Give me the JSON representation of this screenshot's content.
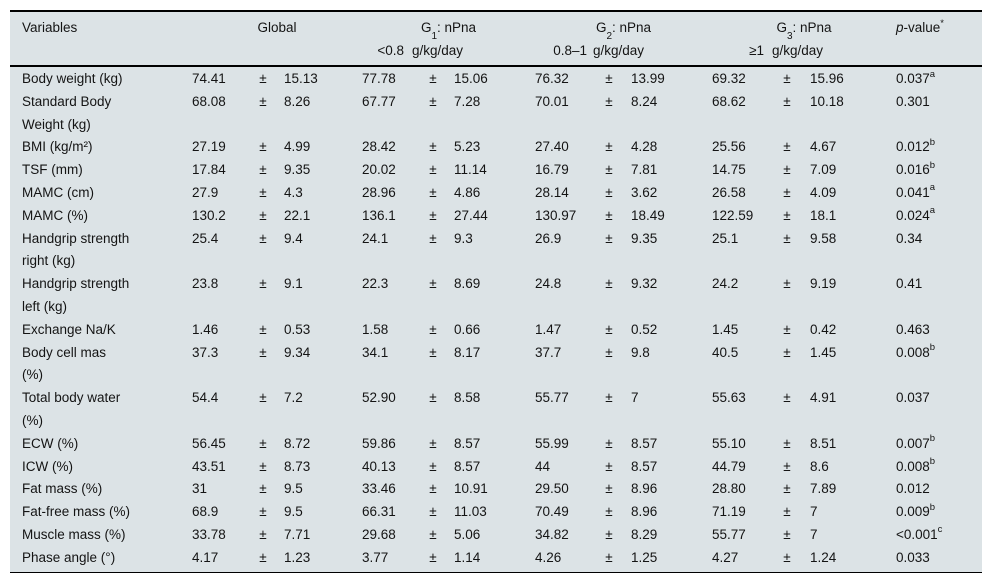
{
  "table": {
    "pm": "±",
    "header": {
      "variables": "Variables",
      "global": {
        "name": "Global"
      },
      "g1": {
        "prefix": "G",
        "sub": "1",
        "suffix": ": nPna",
        "range": "<0.8",
        "unit": "g/kg/day"
      },
      "g2": {
        "prefix": "G",
        "sub": "2",
        "suffix": ": nPna",
        "range": "0.8–1",
        "unit": "g/kg/day"
      },
      "g3": {
        "prefix": "G",
        "sub": "3",
        "suffix": ": nPna",
        "range": "≥1",
        "unit": "g/kg/day"
      },
      "pvalue": {
        "italic": "p",
        "rest": "-value",
        "sup": "*"
      }
    },
    "rows": [
      {
        "var1": "Body weight (kg)",
        "var2": "",
        "global_mean": "74.41",
        "global_sd": "15.13",
        "g1_mean": "77.78",
        "g1_sd": "15.06",
        "g2_mean": "76.32",
        "g2_sd": "13.99",
        "g3_mean": "69.32",
        "g3_sd": "15.96",
        "p": "0.037",
        "p_sup": "a"
      },
      {
        "var1": "Standard Body",
        "var2": "Weight (kg)",
        "global_mean": "68.08",
        "global_sd": "8.26",
        "g1_mean": "67.77",
        "g1_sd": "7.28",
        "g2_mean": "70.01",
        "g2_sd": "8.24",
        "g3_mean": "68.62",
        "g3_sd": "10.18",
        "p": "0.301",
        "p_sup": ""
      },
      {
        "var1": "BMI (kg/m²)",
        "var2": "",
        "global_mean": "27.19",
        "global_sd": "4.99",
        "g1_mean": "28.42",
        "g1_sd": "5.23",
        "g2_mean": "27.40",
        "g2_sd": "4.28",
        "g3_mean": "25.56",
        "g3_sd": "4.67",
        "p": "0.012",
        "p_sup": "b"
      },
      {
        "var1": "TSF (mm)",
        "var2": "",
        "global_mean": "17.84",
        "global_sd": "9.35",
        "g1_mean": "20.02",
        "g1_sd": "11.14",
        "g2_mean": "16.79",
        "g2_sd": "7.81",
        "g3_mean": "14.75",
        "g3_sd": "7.09",
        "p": "0.016",
        "p_sup": "b"
      },
      {
        "var1": "MAMC (cm)",
        "var2": "",
        "global_mean": "27.9",
        "global_sd": "4.3",
        "g1_mean": "28.96",
        "g1_sd": "4.86",
        "g2_mean": "28.14",
        "g2_sd": "3.62",
        "g3_mean": "26.58",
        "g3_sd": "4.09",
        "p": "0.041",
        "p_sup": "a"
      },
      {
        "var1": "MAMC (%)",
        "var2": "",
        "global_mean": "130.2",
        "global_sd": "22.1",
        "g1_mean": "136.1",
        "g1_sd": "27.44",
        "g2_mean": "130.97",
        "g2_sd": "18.49",
        "g3_mean": "122.59",
        "g3_sd": "18.1",
        "p": "0.024",
        "p_sup": "a"
      },
      {
        "var1": "Handgrip strength",
        "var2": "right (kg)",
        "global_mean": "25.4",
        "global_sd": "9.4",
        "g1_mean": "24.1",
        "g1_sd": "9.3",
        "g2_mean": "26.9",
        "g2_sd": "9.35",
        "g3_mean": "25.1",
        "g3_sd": "9.58",
        "p": "0.34",
        "p_sup": ""
      },
      {
        "var1": "Handgrip strength",
        "var2": "left (kg)",
        "global_mean": "23.8",
        "global_sd": "9.1",
        "g1_mean": "22.3",
        "g1_sd": "8.69",
        "g2_mean": "24.8",
        "g2_sd": "9.32",
        "g3_mean": "24.2",
        "g3_sd": "9.19",
        "p": "0.41",
        "p_sup": ""
      },
      {
        "var1": "Exchange Na/K",
        "var2": "",
        "global_mean": "1.46",
        "global_sd": "0.53",
        "g1_mean": "1.58",
        "g1_sd": "0.66",
        "g2_mean": "1.47",
        "g2_sd": "0.52",
        "g3_mean": "1.45",
        "g3_sd": "0.42",
        "p": "0.463",
        "p_sup": ""
      },
      {
        "var1": "Body cell mas",
        "var2": "(%)",
        "global_mean": "37.3",
        "global_sd": "9.34",
        "g1_mean": "34.1",
        "g1_sd": "8.17",
        "g2_mean": "37.7",
        "g2_sd": "9.8",
        "g3_mean": "40.5",
        "g3_sd": "1.45",
        "p": "0.008",
        "p_sup": "b"
      },
      {
        "var1": "Total body water",
        "var2": "(%)",
        "global_mean": "54.4",
        "global_sd": "7.2",
        "g1_mean": "52.90",
        "g1_sd": "8.58",
        "g2_mean": "55.77",
        "g2_sd": "7",
        "g3_mean": "55.63",
        "g3_sd": "4.91",
        "p": "0.037",
        "p_sup": ""
      },
      {
        "var1": "ECW (%)",
        "var2": "",
        "global_mean": "56.45",
        "global_sd": "8.72",
        "g1_mean": "59.86",
        "g1_sd": "8.57",
        "g2_mean": "55.99",
        "g2_sd": "8.57",
        "g3_mean": "55.10",
        "g3_sd": "8.51",
        "p": "0.007",
        "p_sup": "b"
      },
      {
        "var1": "ICW (%)",
        "var2": "",
        "global_mean": "43.51",
        "global_sd": "8.73",
        "g1_mean": "40.13",
        "g1_sd": "8.57",
        "g2_mean": "44",
        "g2_sd": "8.57",
        "g3_mean": "44.79",
        "g3_sd": "8.6",
        "p": "0.008",
        "p_sup": "b"
      },
      {
        "var1": "Fat mass (%)",
        "var2": "",
        "global_mean": "31",
        "global_sd": "9.5",
        "g1_mean": "33.46",
        "g1_sd": "10.91",
        "g2_mean": "29.50",
        "g2_sd": "8.96",
        "g3_mean": "28.80",
        "g3_sd": "7.89",
        "p": "0.012",
        "p_sup": ""
      },
      {
        "var1": "Fat-free mass (%)",
        "var2": "",
        "global_mean": "68.9",
        "global_sd": "9.5",
        "g1_mean": "66.31",
        "g1_sd": "11.03",
        "g2_mean": "70.49",
        "g2_sd": "8.96",
        "g3_mean": "71.19",
        "g3_sd": "7",
        "p": "0.009",
        "p_sup": "b"
      },
      {
        "var1": "Muscle mass (%)",
        "var2": "",
        "global_mean": "33.78",
        "global_sd": "7.71",
        "g1_mean": "29.68",
        "g1_sd": "5.06",
        "g2_mean": "34.82",
        "g2_sd": "8.29",
        "g3_mean": "55.77",
        "g3_sd": "7",
        "p": "<0.001",
        "p_sup": "c"
      },
      {
        "var1": "Phase angle (°)",
        "var2": "",
        "global_mean": "4.17",
        "global_sd": "1.23",
        "g1_mean": "3.77",
        "g1_sd": "1.14",
        "g2_mean": "4.26",
        "g2_sd": "1.25",
        "g3_mean": "4.27",
        "g3_sd": "1.24",
        "p": "0.033",
        "p_sup": ""
      }
    ]
  }
}
